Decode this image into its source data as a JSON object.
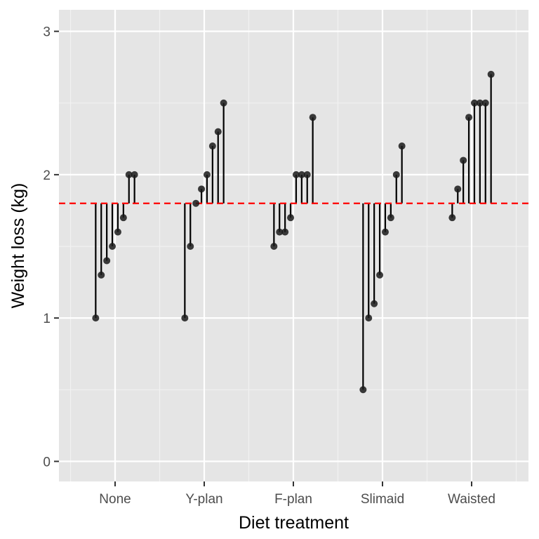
{
  "chart_data": {
    "type": "lollipop-dot",
    "xlabel": "Diet treatment",
    "ylabel": "Weight loss (kg)",
    "ylim": [
      -0.14,
      3.15
    ],
    "yticks": [
      0,
      1,
      2,
      3
    ],
    "reference_line": {
      "value": 1.8,
      "style": "dashed",
      "color": "#ff0000"
    },
    "grid": true,
    "panel_background": "#e5e5e5",
    "point_color": "#1a1a1a",
    "segment_color": "#000000",
    "groups": [
      {
        "label": "None",
        "values": [
          1.0,
          1.3,
          1.4,
          1.5,
          1.6,
          1.7,
          2.0,
          2.0
        ]
      },
      {
        "label": "Y-plan",
        "values": [
          1.0,
          1.5,
          1.8,
          1.9,
          2.0,
          2.2,
          2.3,
          2.5
        ]
      },
      {
        "label": "F-plan",
        "values": [
          1.5,
          1.6,
          1.6,
          1.7,
          2.0,
          2.0,
          2.0,
          2.4
        ]
      },
      {
        "label": "Slimaid",
        "values": [
          0.5,
          1.0,
          1.1,
          1.3,
          1.6,
          1.7,
          2.0,
          2.2
        ]
      },
      {
        "label": "Waisted",
        "values": [
          1.7,
          1.9,
          2.1,
          2.4,
          2.5,
          2.5,
          2.5,
          2.7
        ]
      }
    ]
  }
}
